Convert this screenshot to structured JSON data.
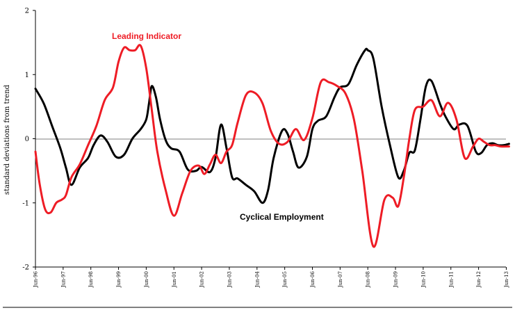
{
  "chart_data": {
    "type": "line",
    "title": "",
    "xlabel": "",
    "ylabel": "standard deviations from trend",
    "ylim": [
      -2,
      2
    ],
    "yticks": [
      -2,
      -1,
      0,
      1,
      2
    ],
    "categories": [
      "Jun-96",
      "Jun-97",
      "Jun-98",
      "Jun-99",
      "Jun-00",
      "Jun-01",
      "Jun-02",
      "Jun-03",
      "Jun-04",
      "Jun-05",
      "Jun-06",
      "Jun-07",
      "Jun-08",
      "Jun-09",
      "Jun-10",
      "Jun-11",
      "Jun-12",
      "Jun-13"
    ],
    "grid": false,
    "series": [
      {
        "name": "Cyclical Employment",
        "color": "#000000",
        "x": [
          0,
          0.3,
          0.6,
          0.9,
          1.1,
          1.3,
          1.6,
          1.9,
          2.1,
          2.35,
          2.6,
          2.9,
          3.2,
          3.5,
          3.8,
          4.0,
          4.1,
          4.2,
          4.35,
          4.5,
          4.7,
          4.9,
          5.2,
          5.5,
          5.8,
          6.0,
          6.3,
          6.5,
          6.7,
          6.9,
          7.1,
          7.3,
          7.6,
          7.9,
          8.2,
          8.4,
          8.6,
          8.9,
          9.1,
          9.3,
          9.5,
          9.8,
          10.0,
          10.2,
          10.5,
          10.8,
          11.0,
          11.3,
          11.6,
          11.9,
          12.0,
          12.2,
          12.5,
          12.8,
          13.1,
          13.3,
          13.5,
          13.7,
          13.9,
          14.1,
          14.3,
          14.6,
          14.8,
          15.1,
          15.3,
          15.6,
          15.9,
          16.1,
          16.3,
          16.5,
          16.7,
          16.9,
          17.1
        ],
        "values": [
          0.78,
          0.55,
          0.2,
          -0.15,
          -0.45,
          -0.72,
          -0.45,
          -0.3,
          -0.1,
          0.05,
          -0.05,
          -0.28,
          -0.25,
          0.0,
          0.15,
          0.3,
          0.55,
          0.82,
          0.65,
          0.3,
          -0.02,
          -0.15,
          -0.2,
          -0.48,
          -0.5,
          -0.44,
          -0.52,
          -0.3,
          0.22,
          -0.15,
          -0.6,
          -0.62,
          -0.72,
          -0.82,
          -1.0,
          -0.8,
          -0.3,
          0.12,
          0.08,
          -0.2,
          -0.45,
          -0.28,
          0.15,
          0.28,
          0.35,
          0.65,
          0.8,
          0.85,
          1.15,
          1.38,
          1.38,
          1.25,
          0.5,
          -0.1,
          -0.6,
          -0.5,
          -0.22,
          -0.18,
          0.3,
          0.82,
          0.9,
          0.55,
          0.35,
          0.15,
          0.22,
          0.2,
          -0.2,
          -0.22,
          -0.1,
          -0.07,
          -0.1,
          -0.1,
          -0.08
        ]
      },
      {
        "name": "Leading Indicator",
        "color": "#ee1c25",
        "x": [
          0,
          0.15,
          0.35,
          0.55,
          0.75,
          0.95,
          1.1,
          1.3,
          1.6,
          1.9,
          2.2,
          2.5,
          2.8,
          3.0,
          3.2,
          3.4,
          3.6,
          3.8,
          4.0,
          4.2,
          4.4,
          4.7,
          5.0,
          5.3,
          5.6,
          5.9,
          6.1,
          6.3,
          6.5,
          6.7,
          6.9,
          7.1,
          7.3,
          7.6,
          7.9,
          8.2,
          8.5,
          8.8,
          9.1,
          9.4,
          9.7,
          10.0,
          10.3,
          10.6,
          10.9,
          11.2,
          11.5,
          11.8,
          12.2,
          12.6,
          12.9,
          13.1,
          13.3,
          13.5,
          13.7,
          14.0,
          14.3,
          14.6,
          14.9,
          15.2,
          15.5,
          15.8,
          16.0,
          16.2,
          16.4,
          16.6,
          16.8,
          17.1
        ],
        "values": [
          -0.2,
          -0.7,
          -1.1,
          -1.15,
          -1.0,
          -0.95,
          -0.88,
          -0.6,
          -0.4,
          -0.1,
          0.2,
          0.6,
          0.8,
          1.2,
          1.42,
          1.38,
          1.38,
          1.45,
          1.1,
          0.45,
          -0.2,
          -0.8,
          -1.2,
          -0.85,
          -0.5,
          -0.42,
          -0.55,
          -0.4,
          -0.25,
          -0.38,
          -0.2,
          -0.1,
          0.25,
          0.68,
          0.72,
          0.55,
          0.12,
          -0.08,
          -0.05,
          0.15,
          -0.02,
          0.32,
          0.88,
          0.88,
          0.82,
          0.7,
          0.3,
          -0.5,
          -1.68,
          -0.95,
          -0.92,
          -1.05,
          -0.6,
          0.0,
          0.45,
          0.5,
          0.6,
          0.35,
          0.56,
          0.3,
          -0.3,
          -0.12,
          0.0,
          -0.05,
          -0.1,
          -0.1,
          -0.12,
          -0.12
        ]
      }
    ],
    "annotations": [
      {
        "text": "Leading Indicator",
        "color": "#ee1c25"
      },
      {
        "text": "Cyclical Employment",
        "color": "#000000"
      }
    ]
  }
}
